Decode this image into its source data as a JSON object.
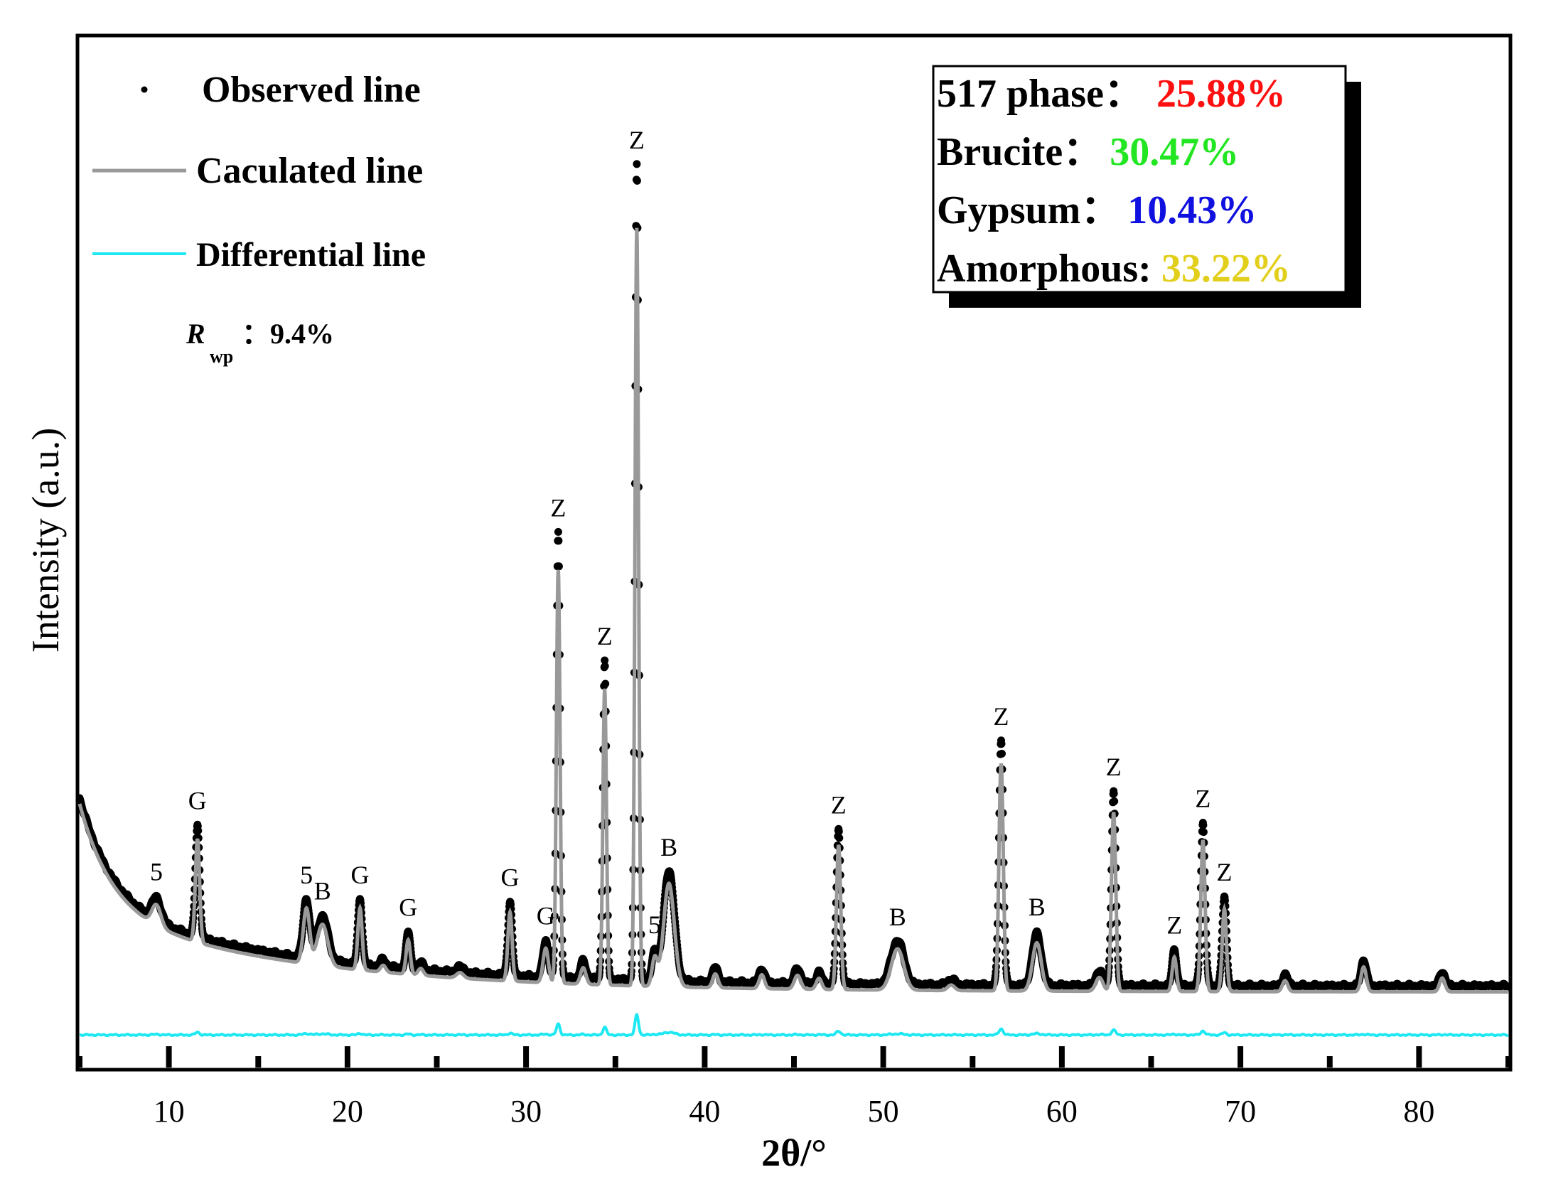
{
  "chart_data": {
    "type": "line",
    "xlabel": "2θ/°",
    "ylabel": "Intensity (a.u.)",
    "xlim": [
      5,
      85
    ],
    "ylim": [
      -0.25,
      6.7
    ],
    "x_ticks": [
      "10",
      "20",
      "30",
      "40",
      "50",
      "60",
      "70",
      "80"
    ],
    "x_tick_values": [
      10,
      20,
      30,
      40,
      50,
      60,
      70,
      80
    ],
    "legend": [
      {
        "label": "Observed line",
        "style": "dots",
        "color": "#000000"
      },
      {
        "label": "Caculated line",
        "style": "line",
        "color": "#999999"
      },
      {
        "label": "Differential line",
        "style": "line",
        "color": "#1ee8f2"
      }
    ],
    "rwp": {
      "symbol": "R",
      "subscript": "wp",
      "value": "：9.4%"
    },
    "phase_box": [
      {
        "label": "517 phase：",
        "value": "25.88%",
        "color": "#ff1010"
      },
      {
        "label": "Brucite：",
        "value": "30.47%",
        "color": "#22e622"
      },
      {
        "label": "Gypsum：",
        "value": "10.43%",
        "color": "#1010e0"
      },
      {
        "label": "Amorphous: ",
        "value": "33.22%",
        "color": "#e2cf1c"
      }
    ],
    "peaks": [
      {
        "x": 9.3,
        "h": 0.15,
        "w": 0.25,
        "label": "5"
      },
      {
        "x": 11.6,
        "h": 0.75,
        "w": 0.12,
        "label": "G"
      },
      {
        "x": 17.7,
        "h": 0.4,
        "w": 0.18,
        "label": "5"
      },
      {
        "x": 18.6,
        "h": 0.3,
        "w": 0.3,
        "label": "B"
      },
      {
        "x": 20.7,
        "h": 0.45,
        "w": 0.12,
        "label": "G"
      },
      {
        "x": 22.0,
        "h": 0.05,
        "w": 0.15,
        "label": ""
      },
      {
        "x": 23.4,
        "h": 0.25,
        "w": 0.12,
        "label": "G"
      },
      {
        "x": 24.1,
        "h": 0.05,
        "w": 0.15,
        "label": ""
      },
      {
        "x": 26.3,
        "h": 0.04,
        "w": 0.2,
        "label": ""
      },
      {
        "x": 29.1,
        "h": 0.5,
        "w": 0.12,
        "label": "G"
      },
      {
        "x": 31.1,
        "h": 0.25,
        "w": 0.15,
        "label": "G"
      },
      {
        "x": 31.8,
        "h": 3.0,
        "w": 0.1,
        "label": "Z"
      },
      {
        "x": 33.2,
        "h": 0.12,
        "w": 0.15,
        "label": ""
      },
      {
        "x": 34.4,
        "h": 2.15,
        "w": 0.1,
        "label": "Z"
      },
      {
        "x": 36.2,
        "h": 5.5,
        "w": 0.1,
        "label": "Z"
      },
      {
        "x": 37.2,
        "h": 0.2,
        "w": 0.15,
        "label": "5"
      },
      {
        "x": 38.0,
        "h": 0.75,
        "w": 0.3,
        "label": "B"
      },
      {
        "x": 40.6,
        "h": 0.1,
        "w": 0.15,
        "label": ""
      },
      {
        "x": 43.2,
        "h": 0.1,
        "w": 0.15,
        "label": ""
      },
      {
        "x": 45.2,
        "h": 0.1,
        "w": 0.18,
        "label": ""
      },
      {
        "x": 46.4,
        "h": 0.08,
        "w": 0.15,
        "label": ""
      },
      {
        "x": 47.5,
        "h": 1.05,
        "w": 0.12,
        "label": "Z"
      },
      {
        "x": 50.8,
        "h": 0.3,
        "w": 0.35,
        "label": "B"
      },
      {
        "x": 53.8,
        "h": 0.04,
        "w": 0.2,
        "label": ""
      },
      {
        "x": 56.6,
        "h": 1.65,
        "w": 0.12,
        "label": "Z"
      },
      {
        "x": 58.6,
        "h": 0.35,
        "w": 0.25,
        "label": "B"
      },
      {
        "x": 62.1,
        "h": 0.1,
        "w": 0.2,
        "label": ""
      },
      {
        "x": 62.9,
        "h": 1.3,
        "w": 0.12,
        "label": "Z"
      },
      {
        "x": 66.3,
        "h": 0.25,
        "w": 0.12,
        "label": "Z"
      },
      {
        "x": 67.9,
        "h": 1.1,
        "w": 0.12,
        "label": "Z"
      },
      {
        "x": 69.1,
        "h": 0.6,
        "w": 0.12,
        "label": "Z"
      },
      {
        "x": 72.5,
        "h": 0.08,
        "w": 0.15,
        "label": ""
      },
      {
        "x": 76.9,
        "h": 0.18,
        "w": 0.15,
        "label": ""
      },
      {
        "x": 81.3,
        "h": 0.1,
        "w": 0.15,
        "label": ""
      }
    ]
  }
}
